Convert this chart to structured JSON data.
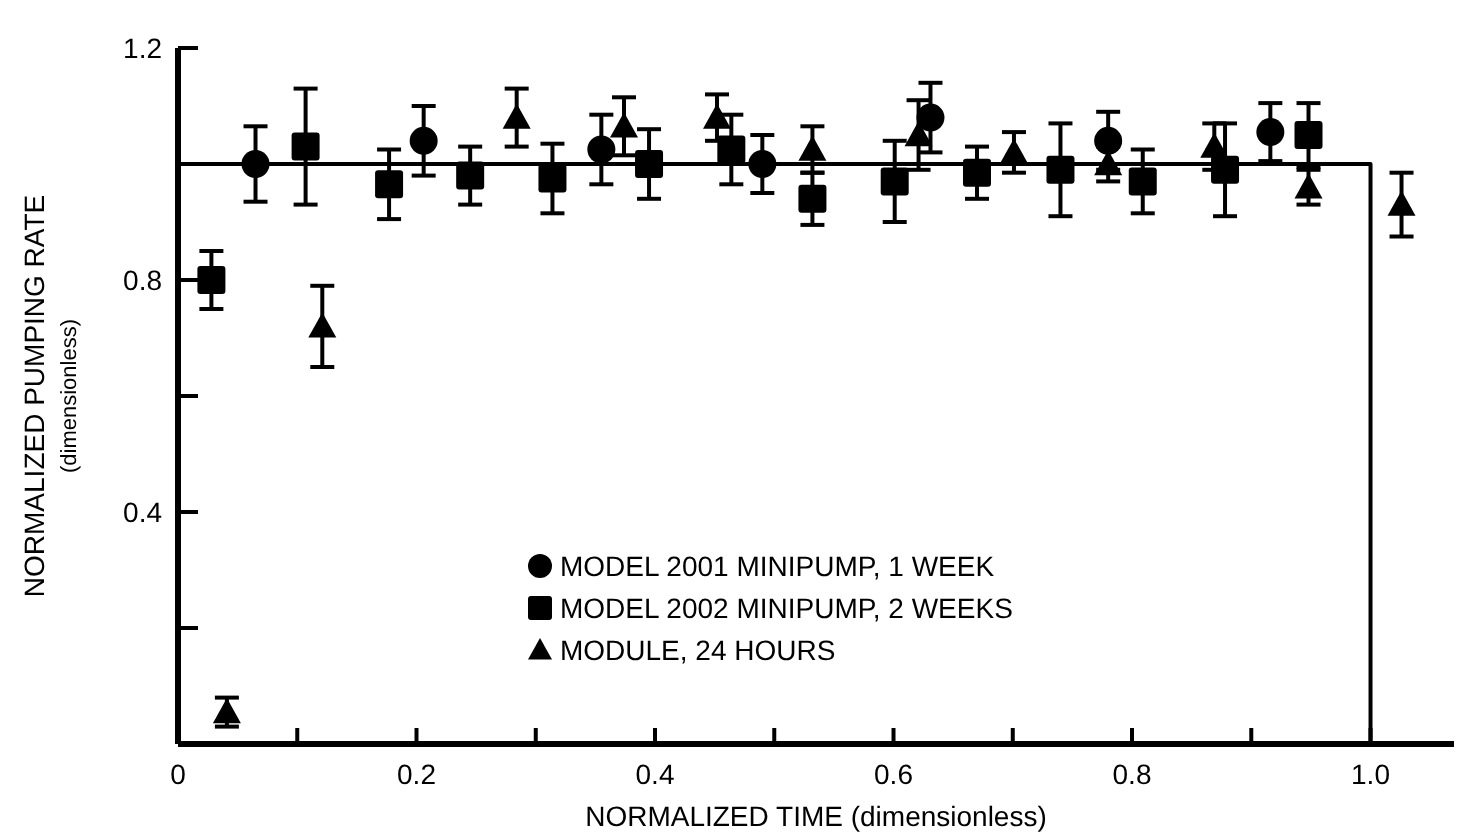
{
  "chart_data": {
    "type": "scatter",
    "xlabel": "NORMALIZED TIME (dimensionless)",
    "ylabel": "NORMALIZED PUMPING RATE",
    "subtitle": "(dimensionless)",
    "xlim": [
      0,
      1.07
    ],
    "ylim": [
      0,
      1.2
    ],
    "xticks": [
      0,
      {
        "value": 0.1,
        "label": null
      },
      0.2,
      {
        "value": 0.3,
        "label": null
      },
      0.4,
      {
        "value": 0.5,
        "label": null
      },
      0.6,
      {
        "value": 0.7,
        "label": null
      },
      0.8,
      {
        "value": 0.9,
        "label": null
      },
      {
        "value": 1.0,
        "label": "1.0"
      }
    ],
    "yticks": [
      {
        "value": 0.2,
        "label": null
      },
      0.4,
      {
        "value": 0.6,
        "label": null
      },
      0.8,
      {
        "value": 1.0,
        "label": null
      },
      1.2
    ],
    "legend": "bottom",
    "grid": false,
    "series": [
      {
        "name": "MODEL 2001 MINIPUMP, 1 WEEK",
        "color": "#000000",
        "marker": "circle",
        "x": [
          0.065,
          0.206,
          0.355,
          0.49,
          0.631,
          0.78,
          0.916
        ],
        "values": [
          1.0,
          1.04,
          1.025,
          1.0,
          1.08,
          1.04,
          1.055
        ],
        "errors": [
          0.065,
          0.06,
          0.06,
          0.05,
          0.06,
          0.05,
          0.05
        ]
      },
      {
        "name": "MODEL 2002 MINIPUMP, 2 WEEKS",
        "color": "#000000",
        "marker": "square",
        "x": [
          0.028,
          0.107,
          0.177,
          0.245,
          0.314,
          0.395,
          0.464,
          0.532,
          0.601,
          0.67,
          0.74,
          0.809,
          0.878,
          0.948
        ],
        "values": [
          0.8,
          1.03,
          0.965,
          0.98,
          0.975,
          1.0,
          1.025,
          0.94,
          0.97,
          0.985,
          0.99,
          0.97,
          0.99,
          1.05
        ],
        "errors": [
          0.05,
          0.1,
          0.06,
          0.05,
          0.06,
          0.06,
          0.06,
          0.045,
          0.07,
          0.045,
          0.08,
          0.055,
          0.08,
          0.055
        ]
      },
      {
        "name": "MODULE, 24 HOURS",
        "color": "#000000",
        "marker": "triangle",
        "x": [
          0.041,
          0.121,
          0.284,
          0.374,
          0.452,
          0.532,
          0.621,
          0.701,
          0.78,
          0.869,
          0.948,
          1.026
        ],
        "values": [
          0.055,
          0.72,
          1.08,
          1.065,
          1.08,
          1.025,
          1.05,
          1.02,
          1.0,
          1.03,
          0.96,
          0.93
        ],
        "errors": [
          0.025,
          0.07,
          0.05,
          0.05,
          0.04,
          0.04,
          0.06,
          0.035,
          0.03,
          0.04,
          0.03,
          0.055
        ]
      },
      {
        "type": "line",
        "color": "#000000",
        "marker": "none",
        "line_style": "solid",
        "x": [
          0,
          1.0,
          1.0
        ],
        "values": [
          1.0,
          1.0,
          0
        ]
      }
    ]
  }
}
